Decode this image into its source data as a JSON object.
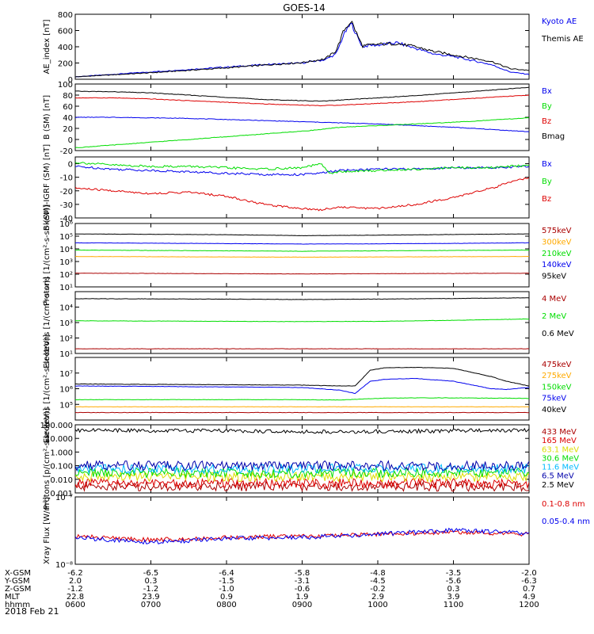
{
  "title": "GOES-14",
  "date_label": "2018 Feb 21",
  "colors": {
    "black": "#000000",
    "blue": "#0000ee",
    "red": "#dd0000",
    "green": "#00dd00",
    "orange": "#ffaa00",
    "yellow": "#dddd00",
    "cyan": "#00bbff",
    "navy": "#0000aa",
    "purple": "#aa00aa",
    "darkred": "#aa0000"
  },
  "time_axis": {
    "ticks": [
      "0600",
      "0700",
      "0800",
      "0900",
      "1000",
      "1100",
      "1200"
    ],
    "rows": [
      {
        "label": "X-GSM",
        "values": [
          "-6.2",
          "-6.5",
          "-6.4",
          "-5.8",
          "-4.8",
          "-3.5",
          "-2.0"
        ]
      },
      {
        "label": "Y-GSM",
        "values": [
          "2.0",
          "0.3",
          "-1.5",
          "-3.1",
          "-4.5",
          "-5.6",
          "-6.3"
        ]
      },
      {
        "label": "Z-GSM",
        "values": [
          "-1.2",
          "-1.2",
          "-1.0",
          "-0.6",
          "-0.2",
          "0.3",
          "0.7"
        ]
      },
      {
        "label": "MLT",
        "values": [
          "22.8",
          "23.9",
          "0.9",
          "1.9",
          "2.9",
          "3.9",
          "4.9"
        ]
      },
      {
        "label": "hhmm",
        "values": [
          "0600",
          "0700",
          "0800",
          "0900",
          "1000",
          "1100",
          "1200"
        ]
      }
    ]
  },
  "chart_data": [
    {
      "type": "line",
      "ylabel": "AE_index [nT]",
      "ylim": [
        0,
        800
      ],
      "scale": "linear",
      "yticks": [
        "0",
        "200",
        "400",
        "600",
        "800"
      ],
      "x": [
        6.0,
        6.5,
        7.0,
        7.5,
        8.0,
        8.5,
        9.0,
        9.3,
        9.45,
        9.55,
        9.65,
        9.75,
        9.8,
        9.9,
        10.0,
        10.25,
        10.5,
        10.75,
        11.0,
        11.25,
        11.5,
        11.75,
        12.0
      ],
      "series": [
        {
          "name": "Kyoto AE",
          "color": "blue",
          "values": [
            30,
            60,
            90,
            120,
            150,
            180,
            200,
            240,
            310,
            550,
            690,
            480,
            400,
            420,
            420,
            450,
            380,
            310,
            280,
            230,
            180,
            90,
            60
          ]
        },
        {
          "name": "Themis AE",
          "color": "black",
          "values": [
            30,
            55,
            80,
            110,
            140,
            175,
            205,
            250,
            350,
            600,
            720,
            500,
            410,
            420,
            430,
            440,
            400,
            340,
            300,
            260,
            220,
            130,
            110
          ]
        }
      ]
    },
    {
      "type": "line",
      "ylabel": "B (SM) [nT]",
      "ylim": [
        -20,
        100
      ],
      "scale": "linear",
      "yticks": [
        "-20",
        "0",
        "20",
        "40",
        "60",
        "80",
        "100"
      ],
      "x": [
        6,
        6.5,
        7,
        7.5,
        8,
        8.5,
        9,
        9.25,
        9.5,
        10,
        10.5,
        11,
        11.5,
        12
      ],
      "series": [
        {
          "name": "Bx",
          "color": "blue",
          "values": [
            40,
            40,
            39,
            38,
            36,
            34,
            32,
            31,
            30,
            28,
            25,
            22,
            18,
            14
          ]
        },
        {
          "name": "By",
          "color": "green",
          "values": [
            -15,
            -10,
            -5,
            0,
            5,
            10,
            15,
            18,
            22,
            25,
            28,
            31,
            35,
            39
          ]
        },
        {
          "name": "Bz",
          "color": "red",
          "values": [
            75,
            75,
            73,
            70,
            67,
            64,
            62,
            61,
            62,
            65,
            68,
            72,
            76,
            80
          ]
        },
        {
          "name": "Bmag",
          "color": "black",
          "values": [
            87,
            86,
            84,
            80,
            76,
            72,
            70,
            69,
            71,
            75,
            79,
            84,
            89,
            94
          ]
        }
      ]
    },
    {
      "type": "line",
      "ylabel": "B (SM)-IGRF (SM) [nT]",
      "ylim": [
        -40,
        5
      ],
      "scale": "linear",
      "yticks": [
        "-40",
        "-30",
        "-20",
        "-10",
        "0"
      ],
      "x": [
        6,
        6.5,
        7,
        7.5,
        8,
        8.5,
        9,
        9.25,
        9.35,
        9.5,
        10,
        10.5,
        11,
        11.5,
        12
      ],
      "series": [
        {
          "name": "Bx",
          "color": "blue",
          "values": [
            -2,
            -4,
            -5,
            -6,
            -7,
            -8,
            -8,
            -7,
            -6,
            -5,
            -4,
            -4,
            -3,
            -3,
            -2
          ]
        },
        {
          "name": "By",
          "color": "green",
          "values": [
            1,
            -1,
            -2,
            -2,
            -3,
            -4,
            -3,
            0,
            -7,
            -6,
            -5,
            -4,
            -3,
            -3,
            -1
          ]
        },
        {
          "name": "Bz",
          "color": "red",
          "values": [
            -18,
            -20,
            -22,
            -21,
            -24,
            -30,
            -33,
            -34,
            -33,
            -32,
            -33,
            -30,
            -25,
            -18,
            -10
          ]
        }
      ]
    },
    {
      "type": "line",
      "ylabel": "Protons [1/(cm²-s-sr-keV)]",
      "ylim": [
        10,
        1000000
      ],
      "scale": "log",
      "yticks": [
        "10¹",
        "10²",
        "10³",
        "10⁴",
        "10⁵",
        "10⁶"
      ],
      "x": [
        6,
        7,
        8,
        9,
        10,
        11,
        12
      ],
      "series": [
        {
          "name": "575keV",
          "color": "darkred",
          "values": [
            120,
            115,
            110,
            105,
            110,
            115,
            120
          ]
        },
        {
          "name": "300keV",
          "color": "orange",
          "values": [
            2500,
            2400,
            2300,
            2200,
            2300,
            2400,
            2500
          ]
        },
        {
          "name": "210keV",
          "color": "green",
          "values": [
            8000,
            7500,
            7000,
            6500,
            7000,
            7500,
            8000
          ]
        },
        {
          "name": "140keV",
          "color": "blue",
          "values": [
            30000,
            28000,
            26000,
            24000,
            25000,
            27000,
            30000
          ]
        },
        {
          "name": "95keV",
          "color": "black",
          "values": [
            150000,
            140000,
            130000,
            110000,
            120000,
            135000,
            150000
          ]
        }
      ]
    },
    {
      "type": "line",
      "ylabel": "Electrons [1/(cm²-s-sr)]",
      "ylim": [
        10,
        100000
      ],
      "scale": "log",
      "yticks": [
        "10¹",
        "10²",
        "10³",
        "10⁴"
      ],
      "x": [
        6,
        7,
        8,
        9,
        10,
        11,
        12
      ],
      "series": [
        {
          "name": "4 MeV",
          "color": "darkred",
          "values": [
            20,
            20,
            20,
            20,
            20,
            20,
            20
          ]
        },
        {
          "name": "2 MeV",
          "color": "green",
          "values": [
            1300,
            1250,
            1200,
            1150,
            1200,
            1400,
            1700
          ]
        },
        {
          "name": "0.6 MeV",
          "color": "black",
          "values": [
            35000,
            34000,
            33000,
            31000,
            33000,
            36000,
            40000
          ]
        }
      ]
    },
    {
      "type": "line",
      "ylabel": "Electrons [1/(cm²-s-sr-keV)]",
      "ylim": [
        10000,
        100000000
      ],
      "scale": "log",
      "yticks": [
        "10⁵",
        "10⁶",
        "10⁷"
      ],
      "x": [
        6,
        7,
        8,
        9,
        9.5,
        9.7,
        9.9,
        10.1,
        10.5,
        11,
        11.5,
        11.7,
        12
      ],
      "series": [
        {
          "name": "475keV",
          "color": "darkred",
          "values": [
            30000,
            30000,
            30000,
            30000,
            30000,
            30000,
            30000,
            30000,
            30000,
            30000,
            30000,
            30000,
            30000
          ]
        },
        {
          "name": "275keV",
          "color": "orange",
          "values": [
            70000,
            70000,
            70000,
            70000,
            70000,
            70000,
            70000,
            70000,
            70000,
            70000,
            70000,
            70000,
            70000
          ]
        },
        {
          "name": "150keV",
          "color": "green",
          "values": [
            200000,
            200000,
            200000,
            200000,
            190000,
            210000,
            230000,
            250000,
            260000,
            260000,
            250000,
            250000,
            240000
          ]
        },
        {
          "name": "75keV",
          "color": "blue",
          "values": [
            1500000,
            1400000,
            1300000,
            1200000,
            800000,
            500000,
            3000000,
            4000000,
            4500000,
            3000000,
            1000000,
            900000,
            1200000
          ]
        },
        {
          "name": "40keV",
          "color": "black",
          "values": [
            2000000,
            1900000,
            1800000,
            1700000,
            1500000,
            1500000,
            15000000,
            22000000,
            23000000,
            20000000,
            6000000,
            3000000,
            1500000
          ]
        }
      ]
    },
    {
      "type": "line",
      "ylabel": "Protons [p/(cm²-s-sr-keV)]",
      "ylim": [
        0.001,
        100
      ],
      "scale": "log",
      "yticks": [
        "0.001",
        "0.010",
        "0.100",
        "1.000",
        "10.000",
        "100.000"
      ],
      "x": [
        6,
        7,
        8,
        9,
        10,
        11,
        12
      ],
      "series": [
        {
          "name": "433 MeV",
          "color": "darkred",
          "values": [
            0.003,
            0.003,
            0.003,
            0.003,
            0.003,
            0.003,
            0.003
          ]
        },
        {
          "name": "165 MeV",
          "color": "red",
          "values": [
            0.005,
            0.005,
            0.005,
            0.005,
            0.005,
            0.005,
            0.005
          ]
        },
        {
          "name": "63.1 MeV",
          "color": "yellow",
          "values": [
            0.015,
            0.015,
            0.015,
            0.015,
            0.015,
            0.015,
            0.015
          ]
        },
        {
          "name": "30.6 MeV",
          "color": "green",
          "values": [
            0.03,
            0.03,
            0.03,
            0.03,
            0.03,
            0.03,
            0.03
          ]
        },
        {
          "name": "11.6 MeV",
          "color": "cyan",
          "values": [
            0.06,
            0.06,
            0.06,
            0.06,
            0.06,
            0.06,
            0.06
          ]
        },
        {
          "name": "6.5 MeV",
          "color": "navy",
          "values": [
            0.1,
            0.1,
            0.1,
            0.1,
            0.1,
            0.1,
            0.1
          ]
        },
        {
          "name": "2.5 MeV",
          "color": "black",
          "values": [
            40,
            38,
            36,
            30,
            32,
            36,
            40
          ]
        }
      ]
    },
    {
      "type": "line",
      "ylabel": "Xray Flux [W/m²]",
      "ylim": [
        1e-08,
        1e-07
      ],
      "scale": "log",
      "yticks": [
        "10⁻⁸",
        "10⁻⁷"
      ],
      "x": [
        6,
        7,
        8,
        9,
        10,
        11,
        12
      ],
      "series": [
        {
          "name": "0.1-0.8 nm",
          "color": "red",
          "values": [
            2.6e-08,
            2.3e-08,
            2.5e-08,
            2.6e-08,
            2.8e-08,
            3e-08,
            2.8e-08
          ]
        },
        {
          "name": "0.05-0.4 nm",
          "color": "blue",
          "values": [
            2.5e-08,
            2.1e-08,
            2.4e-08,
            2.5e-08,
            2.8e-08,
            3.2e-08,
            2.9e-08
          ]
        }
      ]
    }
  ]
}
